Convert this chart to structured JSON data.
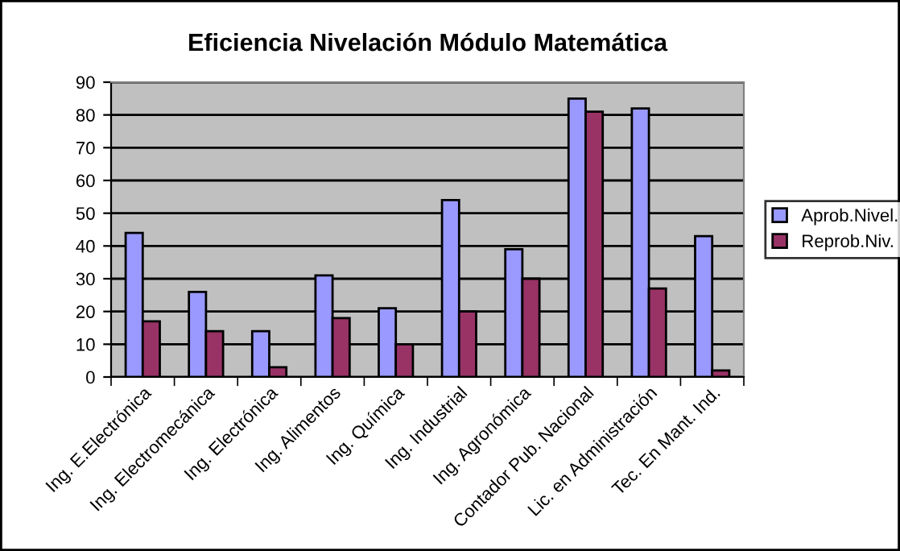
{
  "chart_data": {
    "type": "bar",
    "title": "Eficiencia Nivelación Módulo Matemática",
    "categories": [
      "Ing. E.Electrónica",
      "Ing. Electromecánica",
      "Ing. Electrónica",
      "Ing. Alimentos",
      "Ing. Química",
      "Ing. Industrial",
      "Ing. Agronómica",
      "Contador Pub. Nacional",
      "Lic. en Administración",
      "Tec. En Mant. Ind."
    ],
    "series": [
      {
        "name": "Aprob.Nivel.",
        "color": "#9999ff",
        "values": [
          44,
          26,
          14,
          31,
          21,
          54,
          39,
          85,
          82,
          43
        ]
      },
      {
        "name": "Reprob.Niv.",
        "color": "#993366",
        "values": [
          17,
          14,
          3,
          18,
          10,
          20,
          30,
          81,
          27,
          2
        ]
      }
    ],
    "ylim": [
      0,
      90
    ],
    "yticks": [
      0,
      10,
      20,
      30,
      40,
      50,
      60,
      70,
      80,
      90
    ],
    "grid": "y",
    "legend": "right"
  }
}
